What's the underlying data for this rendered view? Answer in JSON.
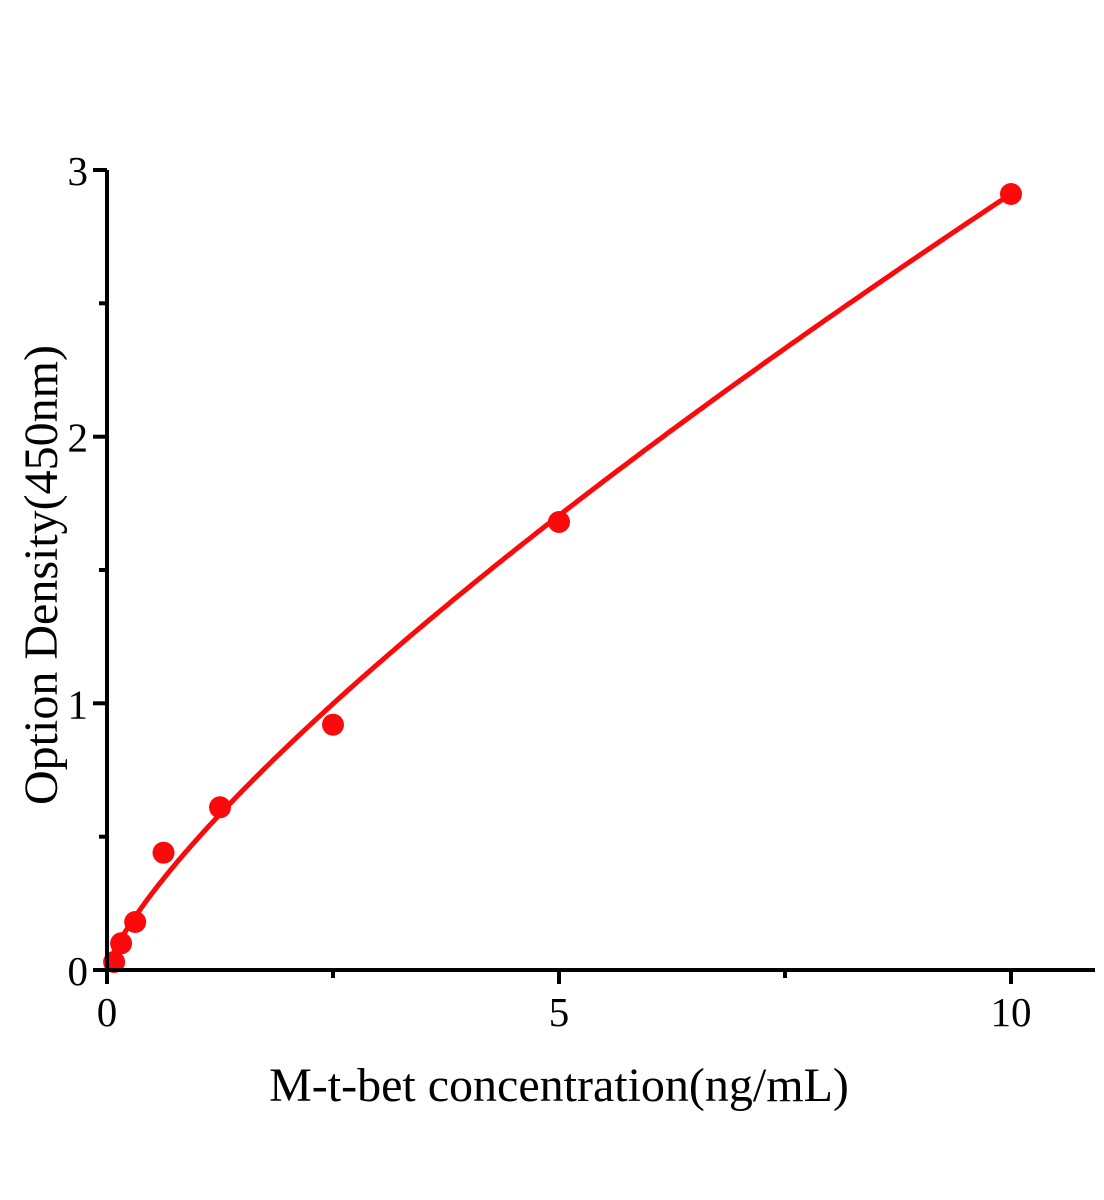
{
  "chart_data": {
    "type": "scatter",
    "title": "",
    "xlabel": "M-t-bet concentration(ng/mL)",
    "ylabel": "Option Density(450nm)",
    "xlim": [
      0,
      10.9
    ],
    "ylim": [
      0,
      3
    ],
    "x_ticks_major": [
      0,
      5,
      10
    ],
    "x_ticks_minor": [
      2.5,
      7.5
    ],
    "y_ticks_major": [
      0,
      1,
      2,
      3
    ],
    "y_ticks_minor": [
      0.5,
      1.5,
      2.5
    ],
    "grid": "off",
    "legend": "none",
    "points": [
      {
        "x": 0.078,
        "y": 0.03
      },
      {
        "x": 0.156,
        "y": 0.1
      },
      {
        "x": 0.312,
        "y": 0.18
      },
      {
        "x": 0.625,
        "y": 0.44
      },
      {
        "x": 1.25,
        "y": 0.61
      },
      {
        "x": 2.5,
        "y": 0.92
      },
      {
        "x": 5,
        "y": 1.68
      },
      {
        "x": 10,
        "y": 2.91
      }
    ],
    "fit_curve": {
      "type": "power",
      "equation": "OD = 0.492 * conc^0.772",
      "a": 0.492,
      "b": 0.772,
      "x_range": [
        0,
        10
      ]
    },
    "colors": {
      "series": "#FA0A0A",
      "axis": "#000000",
      "text": "#000000",
      "background": "#FFFFFF"
    }
  }
}
